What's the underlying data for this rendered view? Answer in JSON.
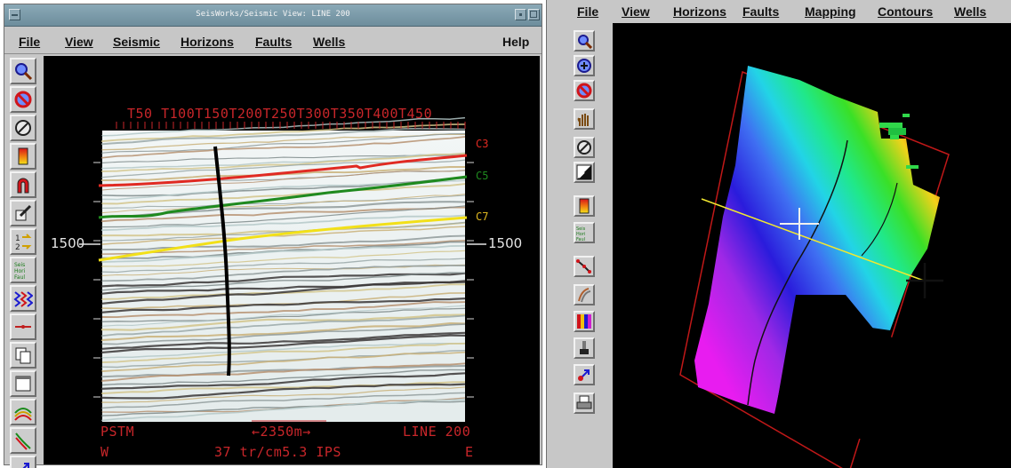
{
  "left_window": {
    "title": "SeisWorks/Seismic View: LINE 200",
    "menu": [
      "File",
      "View",
      "Seismic",
      "Horizons",
      "Faults",
      "Wells",
      "Help"
    ],
    "tools": [
      "zoom-icon",
      "cancel-zoom-icon",
      "pick-mode-icon",
      "color-bar-icon",
      "magnet-icon",
      "pencil-icon",
      "step-icon",
      "seis-hori-faul-icon",
      "wiggle-icon",
      "horizontal-line-icon",
      "copy-icon",
      "window-icon",
      "horizon-arc-icon",
      "fault-icon",
      "arrow-pick-icon"
    ],
    "seismic": {
      "trace_labels": [
        "T50",
        "T100",
        "T150",
        "T200",
        "T250",
        "T300",
        "T350",
        "T400",
        "T450"
      ],
      "depth_label_left": "1500",
      "depth_label_right": "1500",
      "horizons": [
        {
          "name": "C3",
          "color": "#e02a22"
        },
        {
          "name": "C5",
          "color": "#1f8a1f"
        },
        {
          "name": "C7",
          "color": "#f2e018"
        }
      ],
      "bottom_left_top": "PSTM",
      "bottom_left_bottom": "W",
      "scale_bar": "2350m",
      "bottom_center": "37 tr/cm",
      "bottom_speed": "5.3 IPS",
      "bottom_right_top": "LINE 200",
      "bottom_right_bottom": "E"
    }
  },
  "right_window": {
    "menu": [
      "File",
      "View",
      "Horizons",
      "Faults",
      "Mapping",
      "Contours",
      "Wells"
    ],
    "tools": [
      "zoom-in-icon",
      "magnify-icon",
      "cancel-zoom-icon",
      "hand-pan-icon",
      "pick-mode-icon",
      "arrow-split-icon",
      "color-bar-icon",
      "seis-hori-faul-icon",
      "polygon-icon",
      "fault-map-icon",
      "color-table-icon",
      "paint-brush-icon",
      "arrow-pick-icon",
      "print-icon"
    ]
  }
}
